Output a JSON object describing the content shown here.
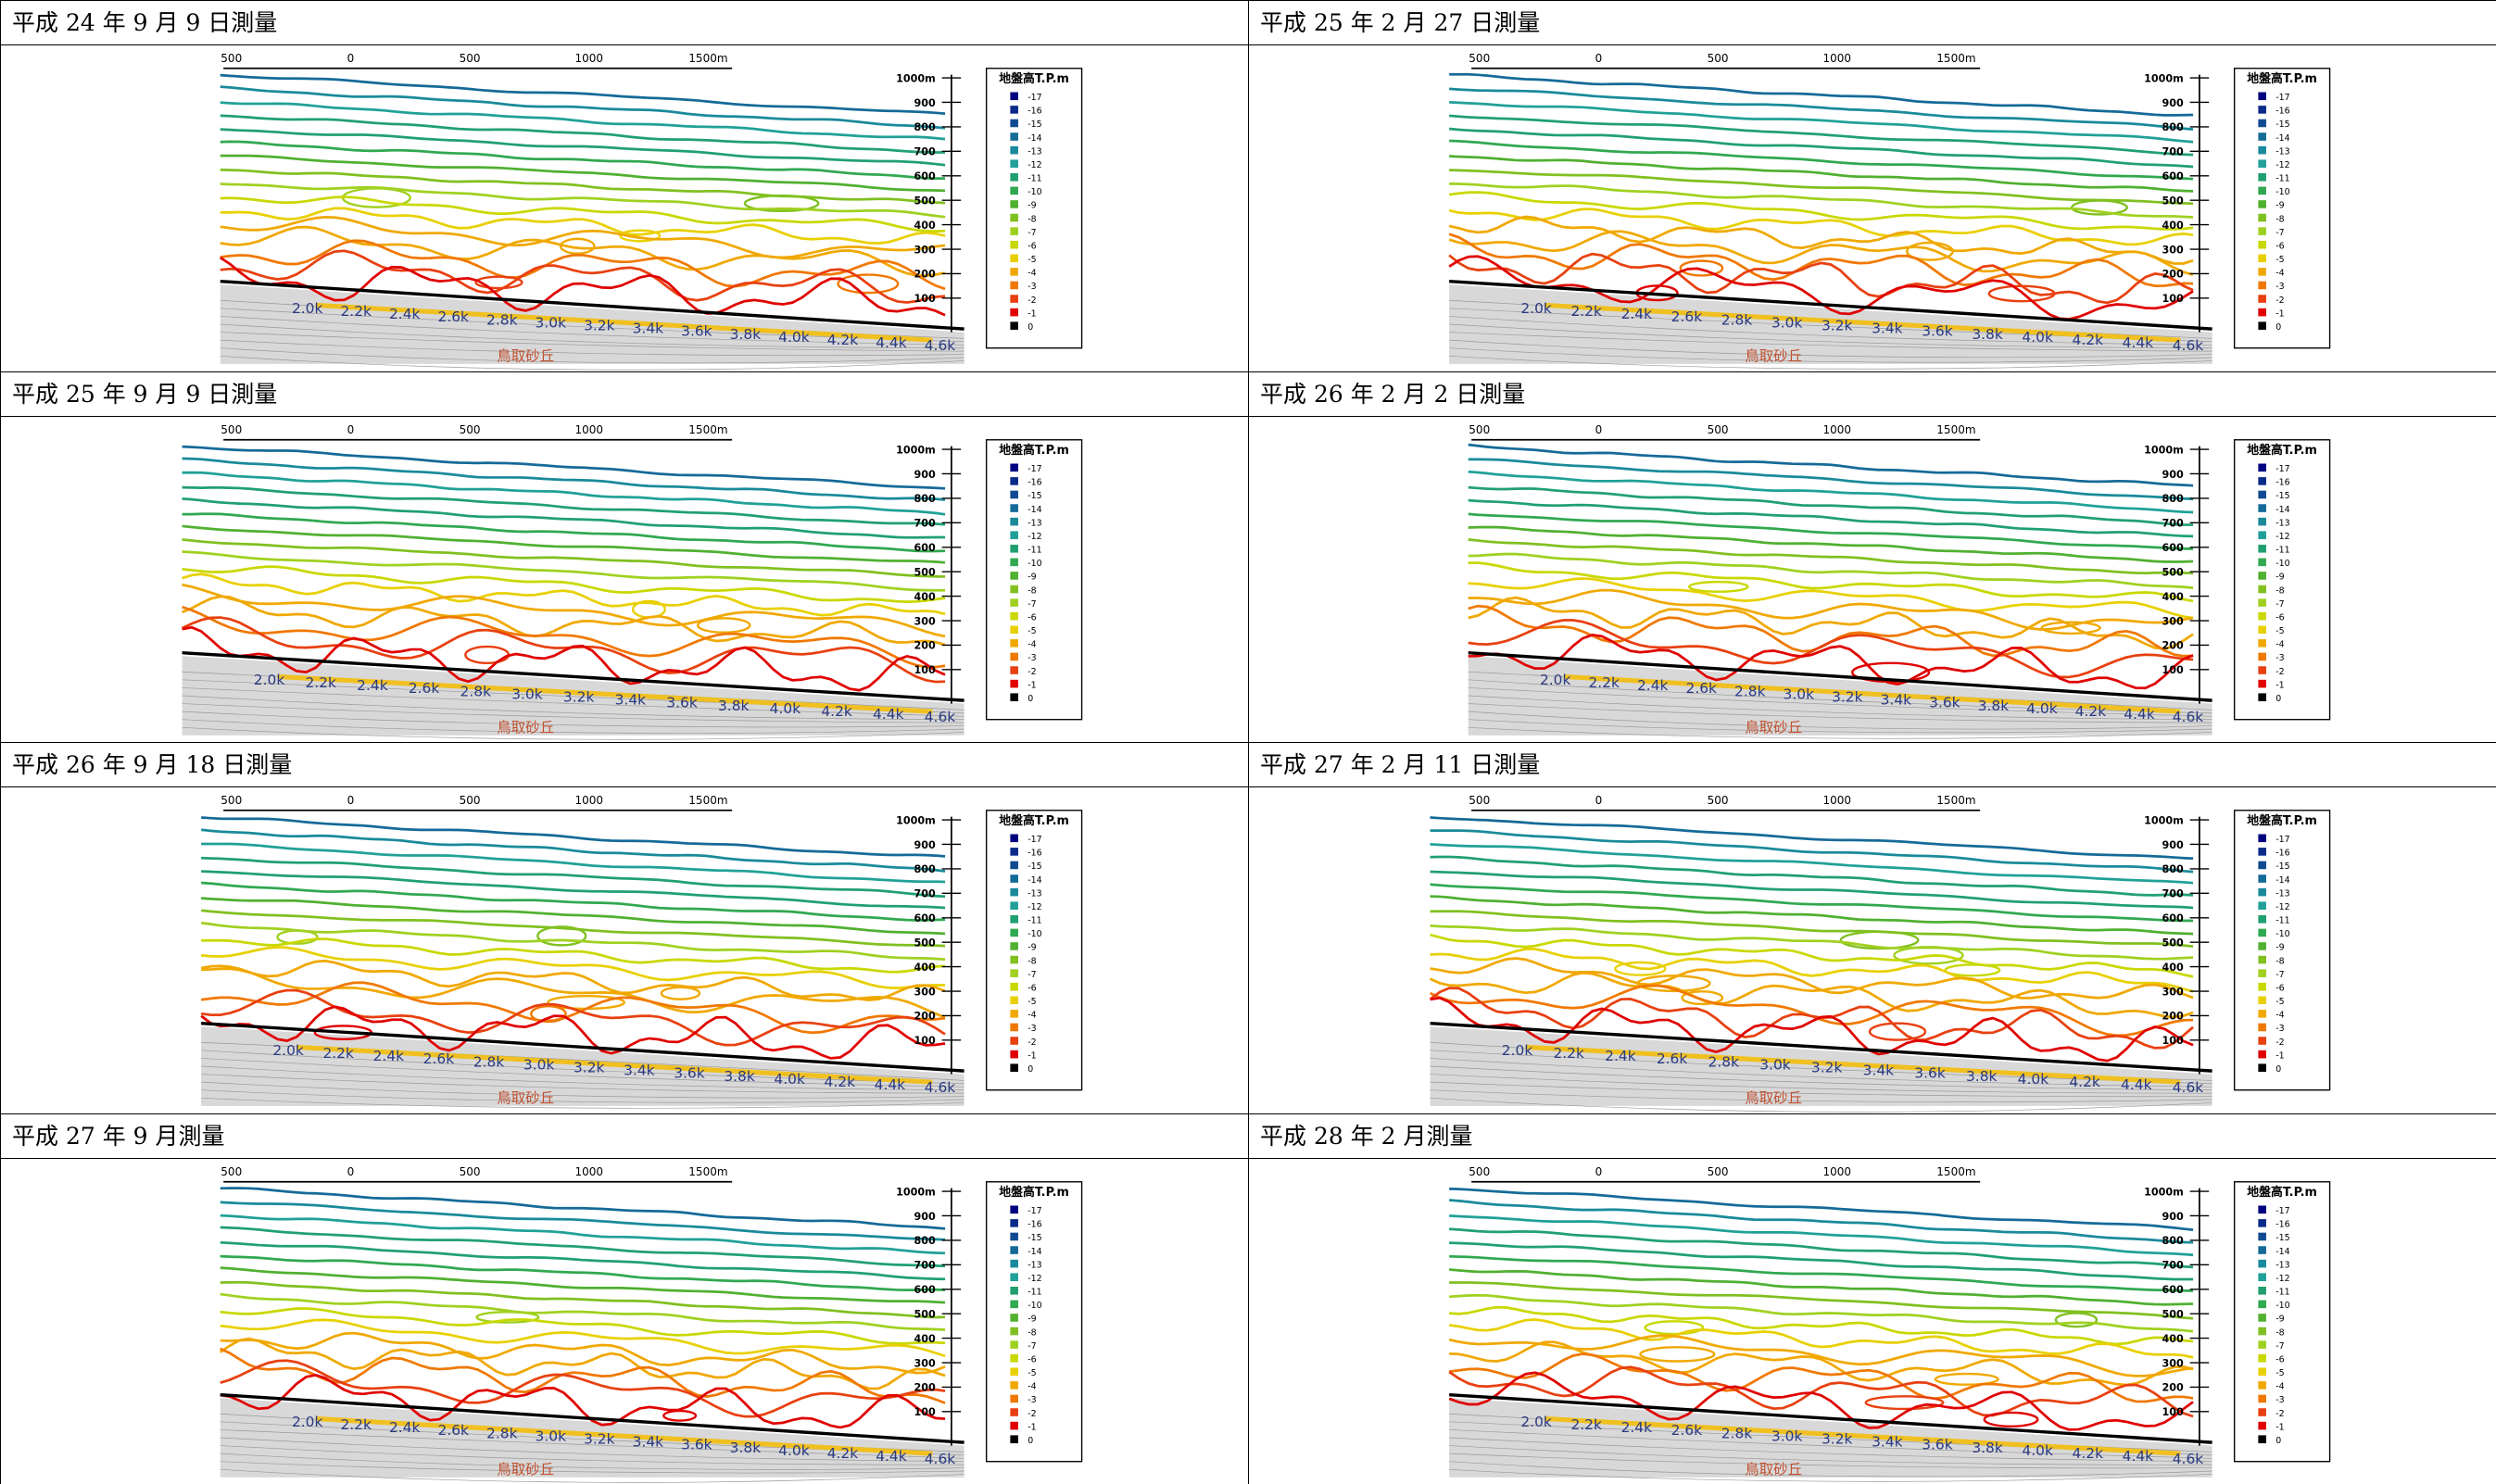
{
  "panels": [
    {
      "title": "平成 24 年 9 月  9 日測量"
    },
    {
      "title": "平成 25 年 2 月 27 日測量"
    },
    {
      "title": "平成 25 年 9 月  9 日測量"
    },
    {
      "title": "平成 26 年 2 月  2 日測量"
    },
    {
      "title": "平成 26 年 9 月 18 日測量"
    },
    {
      "title": "平成 27 年 2 月 11 日測量"
    },
    {
      "title": "平成 27 年 9 月測量"
    },
    {
      "title": "平成 28 年 2 月測量"
    }
  ],
  "map": {
    "scale_labels": [
      "500",
      "0",
      "500",
      "1000",
      "1500m"
    ],
    "distance_labels": [
      "1000m",
      "900",
      "800",
      "700",
      "600",
      "500",
      "400",
      "300",
      "200",
      "100"
    ],
    "legend_title": "地盤高T.P.m",
    "legend": [
      {
        "value": -17,
        "color": "#000080"
      },
      {
        "value": -16,
        "color": "#0a2a8a"
      },
      {
        "value": -15,
        "color": "#104a90"
      },
      {
        "value": -14,
        "color": "#156a98"
      },
      {
        "value": -13,
        "color": "#1a8a9a"
      },
      {
        "value": -12,
        "color": "#20a098"
      },
      {
        "value": -11,
        "color": "#20a070"
      },
      {
        "value": -10,
        "color": "#30a850"
      },
      {
        "value": -9,
        "color": "#50b030"
      },
      {
        "value": -8,
        "color": "#80c020"
      },
      {
        "value": -7,
        "color": "#a0d020"
      },
      {
        "value": -6,
        "color": "#c8d800"
      },
      {
        "value": -5,
        "color": "#e8d000"
      },
      {
        "value": -4,
        "color": "#f0a800"
      },
      {
        "value": -3,
        "color": "#f07800"
      },
      {
        "value": -2,
        "color": "#e84010"
      },
      {
        "value": -1,
        "color": "#e00000"
      },
      {
        "value": 0,
        "color": "#000000"
      }
    ],
    "km_labels": [
      "2.0k",
      "2.2k",
      "2.4k",
      "2.6k",
      "2.8k",
      "3.0k",
      "3.2k",
      "3.4k",
      "3.6k",
      "3.8k",
      "4.0k",
      "4.2k",
      "4.4k",
      "4.6k"
    ],
    "place": "鳥取砂丘"
  }
}
